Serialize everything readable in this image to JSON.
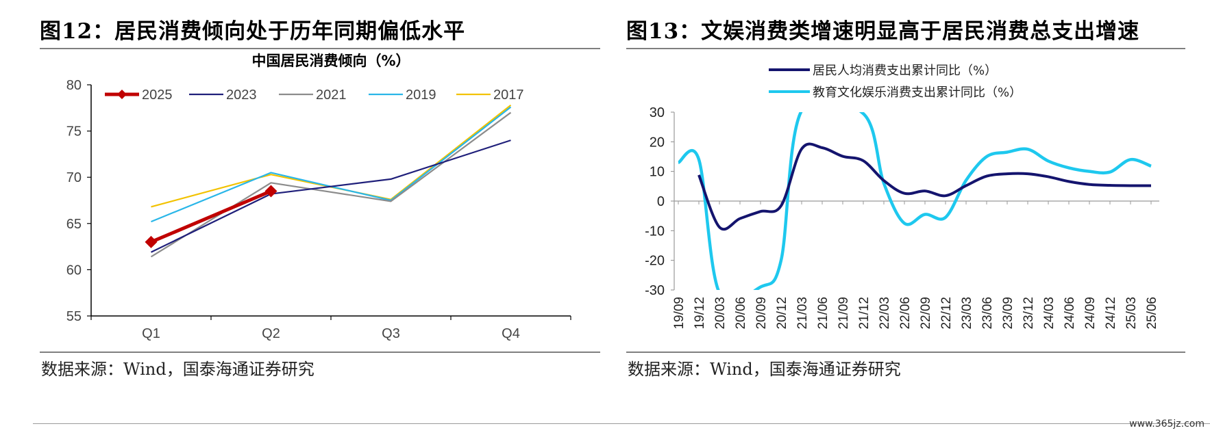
{
  "left": {
    "figure_title": "图12：居民消费倾向处于历年同期偏低水平",
    "source": "数据来源：Wind，国泰海通证券研究"
  },
  "right": {
    "figure_title": "图13：文娱消费类增速明显高于居民消费总支出增速",
    "source": "数据来源：Wind，国泰海通证券研究"
  },
  "watermark": "www.365jz.com",
  "chart_data": [
    {
      "type": "line",
      "title": "中国居民消费倾向（%）",
      "categories": [
        "Q1",
        "Q2",
        "Q3",
        "Q4"
      ],
      "ylim": [
        55,
        80
      ],
      "yticks": [
        55,
        60,
        65,
        70,
        75,
        80
      ],
      "grid": false,
      "legend_position": "top",
      "series": [
        {
          "name": "2025",
          "values": [
            63.0,
            68.5,
            null,
            null
          ],
          "color": "#c00000"
        },
        {
          "name": "2023",
          "values": [
            61.9,
            68.2,
            69.8,
            74.0
          ],
          "color": "#1f1f7a"
        },
        {
          "name": "2021",
          "values": [
            61.4,
            69.4,
            67.4,
            77.0
          ],
          "color": "#8c8c8c"
        },
        {
          "name": "2019",
          "values": [
            65.2,
            70.5,
            67.5,
            77.6
          ],
          "color": "#29b6e8"
        },
        {
          "name": "2017",
          "values": [
            66.8,
            70.3,
            67.6,
            77.8
          ],
          "color": "#f2c200"
        }
      ]
    },
    {
      "type": "line",
      "title": "",
      "ylim": [
        -30,
        30
      ],
      "yticks": [
        -30,
        -20,
        -10,
        0,
        10,
        20,
        30
      ],
      "grid": false,
      "legend_position": "top",
      "x_tick_labels": [
        "19/09",
        "19/12",
        "20/03",
        "20/06",
        "20/09",
        "20/12",
        "21/03",
        "21/06",
        "21/09",
        "21/12",
        "22/03",
        "22/06",
        "22/09",
        "22/12",
        "23/03",
        "23/06",
        "23/09",
        "23/12",
        "24/03",
        "24/06",
        "24/09",
        "24/12",
        "25/03",
        "25/06"
      ],
      "series": [
        {
          "name": "居民人均消费支出累计同比（%）",
          "color": "#14146e",
          "points": [
            [
              "19/12",
              8.8
            ],
            [
              "20/03",
              -8.8
            ],
            [
              "20/06",
              -5.9
            ],
            [
              "20/09",
              -3.5
            ],
            [
              "20/12",
              -1.6
            ],
            [
              "21/03",
              17.6
            ],
            [
              "21/06",
              18.0
            ],
            [
              "21/09",
              15.1
            ],
            [
              "21/12",
              13.6
            ],
            [
              "22/03",
              6.9
            ],
            [
              "22/06",
              2.6
            ],
            [
              "22/09",
              3.4
            ],
            [
              "22/12",
              1.8
            ],
            [
              "23/03",
              5.2
            ],
            [
              "23/06",
              8.4
            ],
            [
              "23/09",
              9.2
            ],
            [
              "23/12",
              9.2
            ],
            [
              "24/03",
              8.2
            ],
            [
              "24/06",
              6.6
            ],
            [
              "24/09",
              5.6
            ],
            [
              "24/12",
              5.3
            ],
            [
              "25/03",
              5.2
            ],
            [
              "25/06",
              5.2
            ]
          ]
        },
        {
          "name": "教育文化娱乐消费支出累计同比（%）",
          "color": "#1ec8ee",
          "points": [
            [
              "19/09",
              13.0
            ],
            [
              "19/12",
              14.0
            ],
            [
              "20/03",
              -31.0
            ],
            [
              "20/09",
              -29.0
            ],
            [
              "20/12",
              -20.0
            ],
            [
              "21/03",
              30.5
            ],
            [
              "21/12",
              29.5
            ],
            [
              "22/03",
              6.0
            ],
            [
              "22/06",
              -7.5
            ],
            [
              "22/09",
              -4.5
            ],
            [
              "22/12",
              -5.5
            ],
            [
              "23/03",
              7.0
            ],
            [
              "23/06",
              15.0
            ],
            [
              "23/09",
              16.5
            ],
            [
              "23/12",
              17.5
            ],
            [
              "24/03",
              13.5
            ],
            [
              "24/06",
              11.2
            ],
            [
              "24/09",
              10.0
            ],
            [
              "24/12",
              9.8
            ],
            [
              "25/03",
              14.0
            ],
            [
              "25/06",
              11.8
            ]
          ]
        }
      ]
    }
  ]
}
